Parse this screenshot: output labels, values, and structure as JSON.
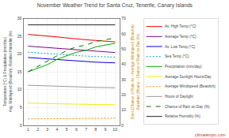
{
  "chart_data": {
    "type": "line",
    "title": "November Weather Trend for Santa Cruz, Tenerife, Canary Islands",
    "x": [
      1,
      2,
      3,
      4,
      5,
      6,
      7,
      8,
      9,
      10
    ],
    "xlim": [
      0.5,
      10.5
    ],
    "xticks": [
      1,
      2,
      3,
      4,
      5,
      6,
      7,
      8,
      9,
      10
    ],
    "ylim": [
      0,
      30
    ],
    "yticks": [
      0,
      5,
      10,
      15,
      20,
      25,
      30
    ],
    "y2lim": [
      0,
      70
    ],
    "y2ticks": [
      0,
      10,
      20,
      30,
      40,
      50,
      60,
      70
    ],
    "ylabel": [
      "Temperature (°C) & Precipitation (mm/day)",
      "Avg. Windspeed (Beaufort), Relative Humidity (%)"
    ],
    "y2label": [
      "Days (Chance of Rain %) / Average Windspeed (Beaufort)",
      "Sunshine (Hours) / Chance of Rain on Day (%)"
    ],
    "grid": true,
    "legend": "right",
    "annotations": [
      {
        "text": "climatempo.com"
      }
    ],
    "series": [
      {
        "name": "Av. High Temp (°C)",
        "color": "#ee0000",
        "line_style": "solid",
        "values": [
          25.5,
          25.3,
          25.1,
          24.8,
          24.5,
          24.2,
          24.0,
          23.8,
          23.6,
          23.4
        ]
      },
      {
        "name": "Average Temp (°C)",
        "color": "#880088",
        "line_style": "solid",
        "values": [
          22.2,
          22.0,
          21.8,
          21.6,
          21.4,
          21.2,
          21.0,
          20.8,
          20.6,
          20.4
        ]
      },
      {
        "name": "Av. Low Temp (°C)",
        "color": "#0000dd",
        "line_style": "solid",
        "values": [
          19.0,
          18.8,
          18.6,
          18.4,
          18.2,
          18.0,
          17.8,
          17.7,
          17.6,
          17.5
        ]
      },
      {
        "name": "Sea Temp (°C)",
        "color": "#00aadd",
        "line_style": "dotted",
        "values": [
          20.5,
          20.3,
          20.1,
          19.9,
          19.7,
          19.5,
          19.4,
          19.3,
          19.2,
          19.1
        ]
      },
      {
        "name": "Precipitation (mm/day)",
        "color": "#00aa00",
        "line_style": "solid",
        "values": [
          15.0,
          16.0,
          17.0,
          18.5,
          19.5,
          20.5,
          21.0,
          22.0,
          22.5,
          23.0
        ]
      },
      {
        "name": "Average Sunlight Hours/Day",
        "color": "#eeee00",
        "line_style": "solid",
        "values": [
          6.2,
          6.1,
          6.05,
          6.0,
          5.95,
          5.9,
          5.85,
          5.8,
          5.75,
          5.7
        ]
      },
      {
        "name": "Average Windspeed (Beaufort)",
        "color": "#ff8800",
        "line_style": "dotted",
        "values": [
          1.75,
          1.78,
          1.8,
          1.82,
          1.85,
          1.87,
          1.88,
          1.9,
          1.92,
          1.95
        ]
      },
      {
        "name": "Hours of Daylight",
        "color": "#999999",
        "line_style": "solid",
        "values": [
          11.2,
          11.1,
          11.0,
          10.9,
          10.8,
          10.7,
          10.65,
          10.6,
          10.55,
          10.5
        ]
      },
      {
        "name": "Chance of Rain on Day (%)",
        "color": "#007700",
        "line_style": "dashed",
        "values": [
          15.0,
          16.5,
          18.0,
          19.5,
          21.0,
          22.0,
          22.5,
          23.5,
          24.0,
          24.5
        ]
      },
      {
        "name": "Relative Humidity (%)",
        "color": "#222222",
        "line_style": "solid",
        "values": [
          28.2,
          28.2,
          28.2,
          28.2,
          28.2,
          28.2,
          28.2,
          28.2,
          28.2,
          28.2
        ]
      }
    ]
  }
}
